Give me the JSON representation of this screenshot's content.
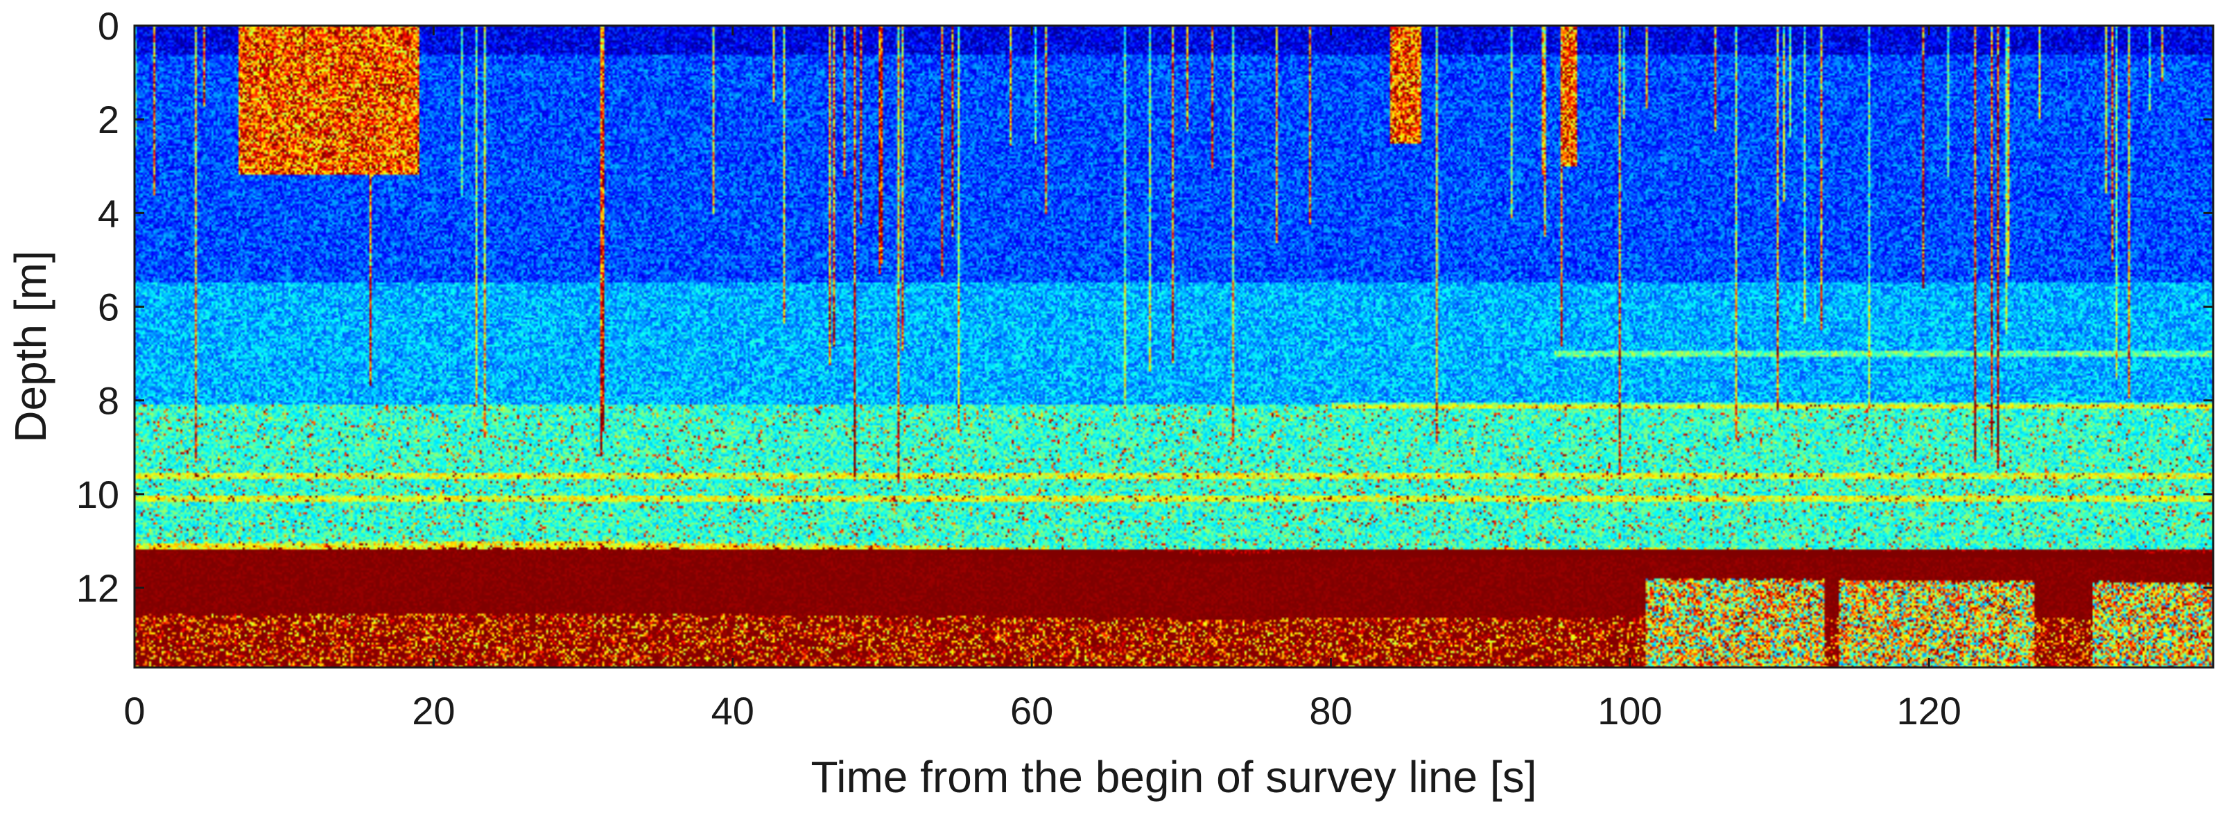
{
  "chart_data": {
    "type": "heatmap",
    "xlabel": "Time from the begin of survey line [s]",
    "ylabel": "Depth [m]",
    "xlim": [
      0,
      139
    ],
    "ylim": [
      0,
      13.7
    ],
    "y_axis_inverted": true,
    "xticks": [
      0,
      20,
      40,
      60,
      80,
      100,
      120
    ],
    "yticks": [
      0,
      2,
      4,
      6,
      8,
      10,
      12
    ],
    "grid": false,
    "colormap": "jet",
    "colormap_stops": [
      "#00008f",
      "#0000ff",
      "#0080ff",
      "#00ffff",
      "#80ff80",
      "#ffff00",
      "#ff8000",
      "#ff0000",
      "#800000"
    ],
    "layers": [
      {
        "depth_range": [
          0,
          0.6
        ],
        "level": 0.1
      },
      {
        "depth_range": [
          0.6,
          5.5
        ],
        "level": 0.2
      },
      {
        "depth_range": [
          5.5,
          8.1
        ],
        "level": 0.3
      },
      {
        "depth_range": [
          8.1,
          11.2
        ],
        "level": 0.42
      },
      {
        "depth_range": [
          11.2,
          13.7
        ],
        "level": 1.0
      }
    ],
    "reflectors": [
      {
        "depth": 8.1,
        "x_range": [
          80,
          139
        ]
      },
      {
        "depth": 7.0,
        "x_range": [
          95,
          139
        ]
      },
      {
        "depth": 9.6,
        "x_range": [
          0,
          139
        ]
      },
      {
        "depth": 10.1,
        "x_range": [
          0,
          139
        ]
      }
    ],
    "seabed_depth": [
      {
        "x": 0,
        "depth": 11.2
      },
      {
        "x": 30,
        "depth": 11.15
      },
      {
        "x": 60,
        "depth": 11.3
      },
      {
        "x": 73,
        "depth": 11.45
      },
      {
        "x": 80,
        "depth": 11.35
      },
      {
        "x": 100,
        "depth": 11.3
      },
      {
        "x": 120,
        "depth": 11.35
      },
      {
        "x": 139,
        "depth": 11.4
      }
    ],
    "high_intensity_columns": [
      {
        "x_range": [
          7,
          19
        ],
        "depth_range": [
          0,
          3.2
        ]
      },
      {
        "x_range": [
          84,
          86
        ],
        "depth_range": [
          0,
          2.5
        ]
      },
      {
        "x_range": [
          95.5,
          96.5
        ],
        "depth_range": [
          0,
          3.0
        ]
      }
    ],
    "reduced_subbottom_zones": [
      {
        "x_range": [
          101,
          113
        ]
      },
      {
        "x_range": [
          114,
          127
        ]
      },
      {
        "x_range": [
          131,
          139
        ]
      }
    ]
  }
}
